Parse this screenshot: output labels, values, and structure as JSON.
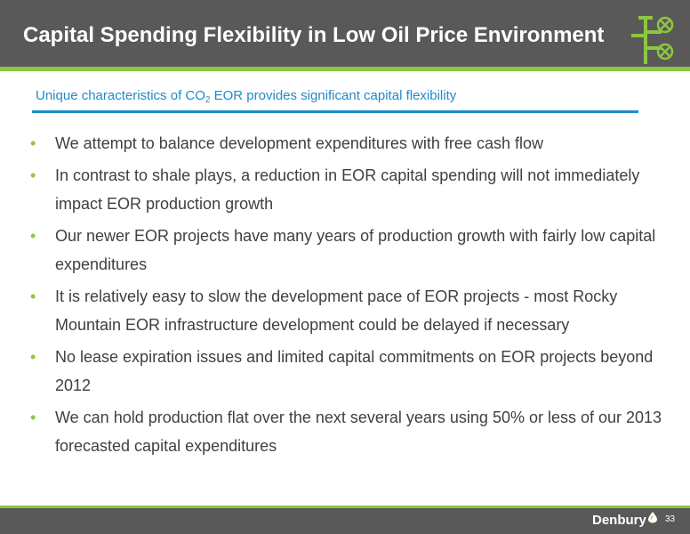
{
  "slide": {
    "title": "Capital Spending Flexibility in Low Oil Price Environment",
    "subtitle_pre": "Unique characteristics of CO",
    "subtitle_sub": "2",
    "subtitle_post": " EOR provides significant capital flexibility",
    "bullets": [
      "We attempt to balance development expenditures with free cash flow",
      "In contrast to shale plays, a reduction in EOR capital spending will not immediately impact EOR production growth",
      "Our newer EOR projects have many years of production growth with fairly low capital expenditures",
      "It is relatively easy to slow the development pace of EOR projects - most Rocky Mountain EOR infrastructure development could be delayed if necessary",
      "No lease expiration issues and limited capital commitments on EOR projects beyond 2012",
      "We can hold production flat over the next several years using 50% or less of our 2013 forecasted capital expenditures"
    ],
    "bullet_glyph": "•"
  },
  "footer": {
    "brand": "Denbury",
    "page_number": "33"
  },
  "icons": {
    "header_logo": "pipeline-valve-icon",
    "brand_mark": "oil-drop-icon"
  },
  "colors": {
    "header_bg": "#595959",
    "accent_green": "#8dc63f",
    "accent_blue": "#1f8ac9",
    "body_text": "#404040"
  }
}
